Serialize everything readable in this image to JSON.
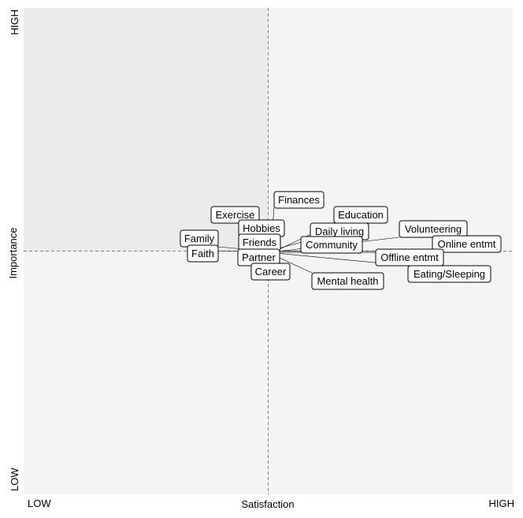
{
  "chart_data": {
    "type": "scatter",
    "title": "",
    "xlabel": "Satisfaction",
    "ylabel": "Importance",
    "x_tick_labels": [
      "LOW",
      "HIGH"
    ],
    "y_tick_labels": [
      "LOW",
      "HIGH"
    ],
    "xlim": [
      -1,
      1
    ],
    "ylim": [
      -1,
      1
    ],
    "quadrant_lines": {
      "x": 0,
      "y": 0
    },
    "grid": false,
    "colors": {
      "quadrant_highlight": "#ebebeb",
      "quadrant_default": "#f4f4f4",
      "divider": "#808080"
    },
    "points": [
      {
        "label": "Finances",
        "x": 0.01,
        "y": 0.01
      },
      {
        "label": "Education",
        "x": 0.03,
        "y": 0.0
      },
      {
        "label": "Exercise",
        "x": 0.0,
        "y": 0.005
      },
      {
        "label": "Hobbies",
        "x": 0.0,
        "y": 0.0
      },
      {
        "label": "Daily living",
        "x": 0.02,
        "y": 0.005
      },
      {
        "label": "Volunteering",
        "x": 0.05,
        "y": 0.0
      },
      {
        "label": "Family",
        "x": -0.01,
        "y": 0.0
      },
      {
        "label": "Friends",
        "x": 0.0,
        "y": 0.0
      },
      {
        "label": "Community",
        "x": 0.01,
        "y": 0.0
      },
      {
        "label": "Online entmt",
        "x": 0.06,
        "y": 0.0
      },
      {
        "label": "Faith",
        "x": -0.015,
        "y": 0.0
      },
      {
        "label": "Partner",
        "x": 0.0,
        "y": -0.005
      },
      {
        "label": "Offline entmt",
        "x": 0.04,
        "y": -0.005
      },
      {
        "label": "Career",
        "x": 0.0,
        "y": -0.01
      },
      {
        "label": "Eating/Sleeping",
        "x": 0.05,
        "y": -0.01
      },
      {
        "label": "Mental health",
        "x": 0.03,
        "y": -0.02
      }
    ]
  }
}
